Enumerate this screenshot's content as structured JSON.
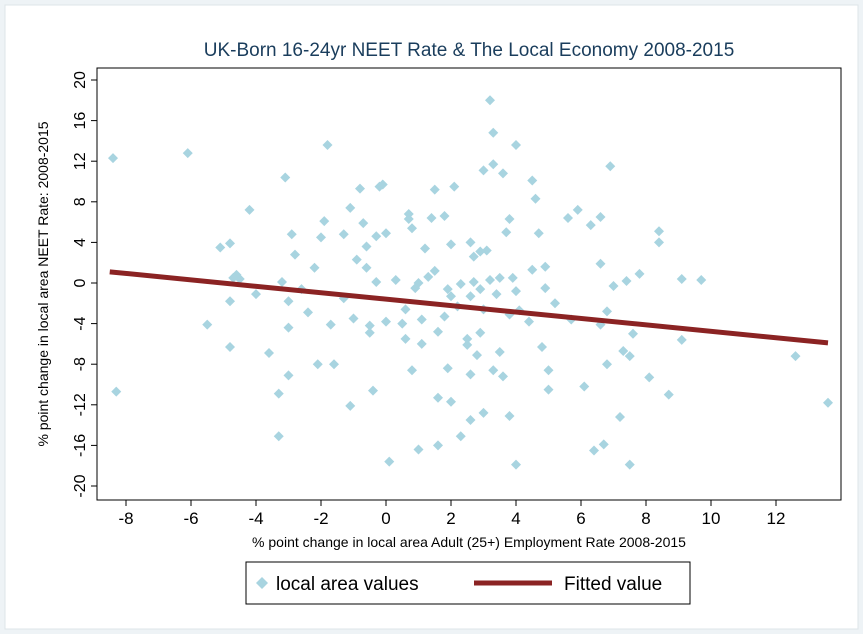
{
  "chart_data": {
    "type": "scatter",
    "title": "UK-Born 16-24yr NEET Rate & The Local Economy 2008-2015",
    "xlabel": "% point change in local area Adult (25+) Employment Rate 2008-2015",
    "ylabel": "% point change in local area NEET Rate: 2008-2015",
    "xlim": [
      -9,
      14
    ],
    "ylim": [
      -21,
      21
    ],
    "xticks": [
      -8,
      -6,
      -4,
      -2,
      0,
      2,
      4,
      6,
      8,
      10,
      12
    ],
    "yticks": [
      -20,
      -16,
      -12,
      -8,
      -4,
      0,
      4,
      8,
      12,
      16,
      20
    ],
    "grid": false,
    "legend_position": "bottom",
    "series": [
      {
        "name": "local area values",
        "marker": "diamond",
        "color": "#a8d4e0",
        "points": [
          [
            -8.4,
            12.3
          ],
          [
            -8.3,
            -10.7
          ],
          [
            -6.1,
            12.8
          ],
          [
            -5.5,
            -4.1
          ],
          [
            -5.1,
            3.5
          ],
          [
            -4.8,
            3.9
          ],
          [
            -4.8,
            -1.8
          ],
          [
            -4.8,
            -6.3
          ],
          [
            -4.7,
            0.5
          ],
          [
            -4.6,
            0.8
          ],
          [
            -4.5,
            0.4
          ],
          [
            -4.2,
            7.2
          ],
          [
            -4.0,
            -1.1
          ],
          [
            -3.6,
            -6.9
          ],
          [
            -3.3,
            -10.9
          ],
          [
            -3.3,
            -15.1
          ],
          [
            -3.2,
            0.1
          ],
          [
            -3.1,
            10.4
          ],
          [
            -3.0,
            -1.8
          ],
          [
            -3.0,
            -4.4
          ],
          [
            -3.0,
            -9.1
          ],
          [
            -2.9,
            4.8
          ],
          [
            -2.8,
            2.8
          ],
          [
            -2.6,
            -0.6
          ],
          [
            -2.4,
            -2.9
          ],
          [
            -2.2,
            1.5
          ],
          [
            -2.1,
            -8.0
          ],
          [
            -2.0,
            4.5
          ],
          [
            -1.9,
            6.1
          ],
          [
            -1.8,
            13.6
          ],
          [
            -1.7,
            -4.1
          ],
          [
            -1.6,
            -8.0
          ],
          [
            -1.3,
            4.8
          ],
          [
            -1.3,
            -1.5
          ],
          [
            -1.1,
            7.4
          ],
          [
            -1.1,
            -12.1
          ],
          [
            -1.0,
            -3.5
          ],
          [
            -0.9,
            2.3
          ],
          [
            -0.8,
            9.3
          ],
          [
            -0.7,
            5.9
          ],
          [
            -0.6,
            3.6
          ],
          [
            -0.6,
            1.5
          ],
          [
            -0.5,
            -4.2
          ],
          [
            -0.5,
            -4.9
          ],
          [
            -0.4,
            -10.6
          ],
          [
            -0.3,
            4.6
          ],
          [
            -0.3,
            0.1
          ],
          [
            -0.2,
            9.5
          ],
          [
            -0.1,
            9.7
          ],
          [
            0.0,
            -3.8
          ],
          [
            0.0,
            4.9
          ],
          [
            0.1,
            -17.6
          ],
          [
            0.3,
            0.3
          ],
          [
            0.5,
            -4.0
          ],
          [
            0.6,
            -2.6
          ],
          [
            0.6,
            -5.5
          ],
          [
            0.7,
            6.8
          ],
          [
            0.7,
            6.3
          ],
          [
            0.8,
            5.4
          ],
          [
            0.8,
            -8.6
          ],
          [
            0.9,
            -0.5
          ],
          [
            1.0,
            0.0
          ],
          [
            1.0,
            -16.4
          ],
          [
            1.1,
            -3.6
          ],
          [
            1.1,
            -6.0
          ],
          [
            1.2,
            3.4
          ],
          [
            1.3,
            0.6
          ],
          [
            1.4,
            6.4
          ],
          [
            1.5,
            9.2
          ],
          [
            1.5,
            1.2
          ],
          [
            1.6,
            -4.8
          ],
          [
            1.6,
            -11.3
          ],
          [
            1.6,
            -16.0
          ],
          [
            1.8,
            6.6
          ],
          [
            1.8,
            -3.3
          ],
          [
            1.9,
            -0.6
          ],
          [
            1.9,
            -8.4
          ],
          [
            2.0,
            3.8
          ],
          [
            2.0,
            -1.3
          ],
          [
            2.0,
            -11.7
          ],
          [
            2.1,
            9.5
          ],
          [
            2.2,
            -2.3
          ],
          [
            2.3,
            -0.1
          ],
          [
            2.3,
            -15.1
          ],
          [
            2.5,
            -5.5
          ],
          [
            2.5,
            -6.1
          ],
          [
            2.6,
            4.0
          ],
          [
            2.6,
            -1.3
          ],
          [
            2.6,
            -9.0
          ],
          [
            2.6,
            -13.5
          ],
          [
            2.7,
            2.6
          ],
          [
            2.7,
            0.1
          ],
          [
            2.8,
            -7.1
          ],
          [
            2.9,
            3.1
          ],
          [
            2.9,
            -0.6
          ],
          [
            2.9,
            -4.9
          ],
          [
            3.0,
            11.1
          ],
          [
            3.0,
            -2.6
          ],
          [
            3.0,
            -12.8
          ],
          [
            3.1,
            3.2
          ],
          [
            3.2,
            18.0
          ],
          [
            3.2,
            0.3
          ],
          [
            3.3,
            14.8
          ],
          [
            3.3,
            11.7
          ],
          [
            3.3,
            -8.6
          ],
          [
            3.4,
            -1.1
          ],
          [
            3.5,
            0.5
          ],
          [
            3.5,
            -6.8
          ],
          [
            3.6,
            10.8
          ],
          [
            3.6,
            -9.2
          ],
          [
            3.7,
            5.0
          ],
          [
            3.8,
            6.3
          ],
          [
            3.8,
            -3.1
          ],
          [
            3.8,
            -13.1
          ],
          [
            3.9,
            0.5
          ],
          [
            4.0,
            -17.9
          ],
          [
            4.0,
            13.6
          ],
          [
            4.0,
            -0.8
          ],
          [
            4.1,
            -2.7
          ],
          [
            4.4,
            -3.8
          ],
          [
            4.5,
            10.1
          ],
          [
            4.5,
            1.3
          ],
          [
            4.6,
            8.3
          ],
          [
            4.7,
            4.9
          ],
          [
            4.8,
            -6.3
          ],
          [
            4.9,
            1.6
          ],
          [
            4.9,
            -0.5
          ],
          [
            5.0,
            -8.6
          ],
          [
            5.0,
            -10.5
          ],
          [
            5.2,
            -2.0
          ],
          [
            5.6,
            6.4
          ],
          [
            5.7,
            -3.6
          ],
          [
            5.9,
            7.2
          ],
          [
            6.1,
            -10.2
          ],
          [
            6.3,
            5.7
          ],
          [
            6.4,
            -16.5
          ],
          [
            6.6,
            6.5
          ],
          [
            6.6,
            1.9
          ],
          [
            6.6,
            -4.1
          ],
          [
            6.7,
            -15.9
          ],
          [
            6.8,
            -8.0
          ],
          [
            6.8,
            -2.8
          ],
          [
            6.9,
            11.5
          ],
          [
            7.0,
            -0.3
          ],
          [
            7.2,
            -13.2
          ],
          [
            7.3,
            -6.7
          ],
          [
            7.4,
            0.2
          ],
          [
            7.5,
            -17.9
          ],
          [
            7.5,
            -7.2
          ],
          [
            7.6,
            -5.0
          ],
          [
            7.8,
            0.9
          ],
          [
            8.1,
            -9.3
          ],
          [
            8.4,
            4.0
          ],
          [
            8.4,
            5.1
          ],
          [
            8.7,
            -11.0
          ],
          [
            9.1,
            0.4
          ],
          [
            9.1,
            -5.6
          ],
          [
            9.7,
            0.3
          ],
          [
            12.6,
            -7.2
          ],
          [
            13.6,
            -11.8
          ]
        ]
      },
      {
        "name": "Fitted value",
        "type": "line",
        "color": "#8b2323",
        "points": [
          [
            -8.5,
            1.1
          ],
          [
            13.6,
            -5.9
          ]
        ]
      }
    ]
  }
}
